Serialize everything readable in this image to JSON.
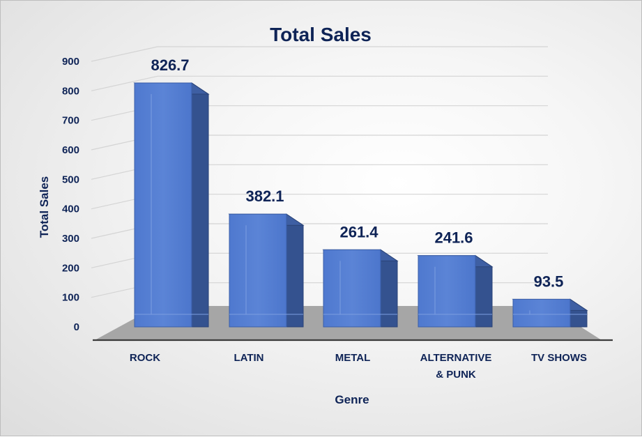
{
  "chart_data": {
    "type": "bar",
    "title": "Total Sales",
    "xlabel": "Genre",
    "ylabel": "Total Sales",
    "categories": [
      "ROCK",
      "LATIN",
      "METAL",
      "ALTERNATIVE & PUNK",
      "TV SHOWS"
    ],
    "values": [
      826.7,
      382.1,
      261.4,
      241.6,
      93.5
    ],
    "data_labels": [
      "826.7",
      "382.1",
      "261.4",
      "241.6",
      "93.5"
    ],
    "yticks": [
      "0",
      "100",
      "200",
      "300",
      "400",
      "500",
      "600",
      "700",
      "800",
      "900"
    ],
    "ylim": [
      0,
      900
    ],
    "grid": true,
    "legend": "none",
    "style": "3d-clustered-column",
    "colors": {
      "bar": "#4a74c9",
      "text": "#0e2356"
    }
  }
}
